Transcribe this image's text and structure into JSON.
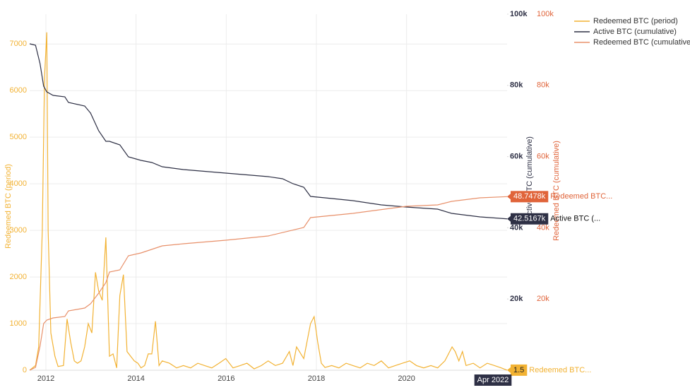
{
  "chart_data": {
    "type": "line",
    "xlim": [
      2011.64,
      2022.23
    ],
    "xticks": [
      2012,
      2014,
      2016,
      2018,
      2020
    ],
    "ylim": [
      0,
      7640
    ],
    "yticks": [
      0,
      1000,
      2000,
      3000,
      4000,
      5000,
      6000,
      7000
    ],
    "y2lim": [
      0,
      100000
    ],
    "y2ticks": [
      {
        "value": 20000,
        "label": "20k"
      },
      {
        "value": 40000,
        "label": "40k"
      },
      {
        "value": 60000,
        "label": "60k"
      },
      {
        "value": 80000,
        "label": "80k"
      },
      {
        "value": 100000,
        "label": "100k"
      }
    ],
    "y3lim": [
      0,
      100000
    ],
    "y3ticks": [
      {
        "value": 20000,
        "label": "20k"
      },
      {
        "value": 40000,
        "label": "40k"
      },
      {
        "value": 60000,
        "label": "60k"
      },
      {
        "value": 80000,
        "label": "80k"
      },
      {
        "value": 100000,
        "label": "100k"
      }
    ],
    "ylabel": "Redeemed BTC (period)",
    "y2label": "Active BTC (cumulative)",
    "y3label": "Redeemed BTC (cumulative)",
    "grid": true,
    "legend": "top-right",
    "x_annotation": "Apr 2022",
    "series": [
      {
        "name": "Redeemed BTC (period)",
        "color": "#f2b233",
        "axis": "y",
        "hover": {
          "value_label": "1.5",
          "name": "Redeemed BTC..."
        },
        "x": [
          2011.64,
          2011.77,
          2011.84,
          2011.92,
          2011.97,
          2012.02,
          2012.05,
          2012.11,
          2012.2,
          2012.27,
          2012.39,
          2012.47,
          2012.55,
          2012.63,
          2012.7,
          2012.78,
          2012.86,
          2012.94,
          2013.02,
          2013.1,
          2013.17,
          2013.25,
          2013.33,
          2013.41,
          2013.49,
          2013.57,
          2013.64,
          2013.72,
          2013.8,
          2013.88,
          2013.96,
          2014.04,
          2014.11,
          2014.19,
          2014.27,
          2014.35,
          2014.43,
          2014.51,
          2014.58,
          2014.74,
          2014.9,
          2015.05,
          2015.21,
          2015.37,
          2015.52,
          2015.68,
          2015.84,
          2015.99,
          2016.15,
          2016.31,
          2016.46,
          2016.62,
          2016.78,
          2016.93,
          2017.09,
          2017.25,
          2017.4,
          2017.48,
          2017.56,
          2017.72,
          2017.87,
          2017.95,
          2018.03,
          2018.11,
          2018.19,
          2018.34,
          2018.5,
          2018.66,
          2018.81,
          2018.97,
          2019.13,
          2019.28,
          2019.44,
          2019.6,
          2019.75,
          2019.91,
          2020.07,
          2020.22,
          2020.38,
          2020.54,
          2020.69,
          2020.85,
          2021.01,
          2021.08,
          2021.16,
          2021.24,
          2021.32,
          2021.48,
          2021.63,
          2021.79,
          2021.95,
          2022.1,
          2022.23
        ],
        "values": [
          0,
          100,
          500,
          3000,
          6300,
          7250,
          3000,
          800,
          300,
          80,
          100,
          1100,
          600,
          200,
          150,
          200,
          500,
          1000,
          800,
          2100,
          1700,
          1500,
          2850,
          300,
          350,
          50,
          1600,
          2050,
          400,
          300,
          200,
          150,
          50,
          100,
          350,
          350,
          1050,
          100,
          200,
          150,
          50,
          100,
          50,
          150,
          100,
          50,
          150,
          250,
          50,
          100,
          150,
          30,
          100,
          200,
          100,
          150,
          400,
          100,
          500,
          250,
          1000,
          1150,
          600,
          150,
          60,
          100,
          50,
          150,
          100,
          50,
          150,
          100,
          200,
          50,
          100,
          150,
          200,
          100,
          50,
          100,
          50,
          200,
          500,
          400,
          200,
          400,
          100,
          150,
          50,
          150,
          100,
          50,
          1.5
        ]
      },
      {
        "name": "Active BTC (cumulative)",
        "color": "#2e3045",
        "axis": "y2",
        "hover": {
          "value_label": "42.5167k",
          "name": "Active BTC (..."
        },
        "x": [
          2011.64,
          2011.77,
          2011.87,
          2011.95,
          2012.02,
          2012.16,
          2012.42,
          2012.5,
          2012.86,
          2012.99,
          2013.17,
          2013.33,
          2013.41,
          2013.64,
          2013.83,
          2014.11,
          2014.35,
          2014.58,
          2015.05,
          2015.99,
          2016.93,
          2017.25,
          2017.48,
          2017.72,
          2017.87,
          2018.19,
          2018.81,
          2019.44,
          2019.99,
          2020.69,
          2021.0,
          2021.63,
          2022.23
        ],
        "values": [
          91667,
          91270,
          86111,
          79762,
          78175,
          77183,
          76786,
          75198,
          74206,
          72222,
          67262,
          64286,
          64286,
          63294,
          59921,
          58929,
          58333,
          57143,
          56349,
          55357,
          54365,
          53770,
          52381,
          51389,
          48810,
          48413,
          47619,
          46429,
          45833,
          45238,
          44048,
          43056,
          42516.7
        ]
      },
      {
        "name": "Redeemed BTC (cumulative)",
        "color": "#e8906a",
        "axis": "y3",
        "hover": {
          "value_label": "48.7478k",
          "name": "Redeemed BTC..."
        },
        "x": [
          2011.64,
          2011.77,
          2011.87,
          2011.95,
          2012.02,
          2012.16,
          2012.42,
          2012.5,
          2012.86,
          2012.99,
          2013.17,
          2013.33,
          2013.41,
          2013.64,
          2013.83,
          2014.11,
          2014.58,
          2015.05,
          2015.99,
          2016.93,
          2017.72,
          2017.87,
          2018.81,
          2019.99,
          2020.69,
          2021.0,
          2021.63,
          2022.23
        ],
        "values": [
          0,
          794,
          6746,
          13095,
          14087,
          14683,
          15079,
          16667,
          17460,
          18651,
          21627,
          24603,
          27579,
          28175,
          32143,
          32937,
          34921,
          35516,
          36508,
          37698,
          40079,
          42857,
          44048,
          46032,
          46429,
          47421,
          48413,
          48747.8
        ]
      }
    ]
  }
}
